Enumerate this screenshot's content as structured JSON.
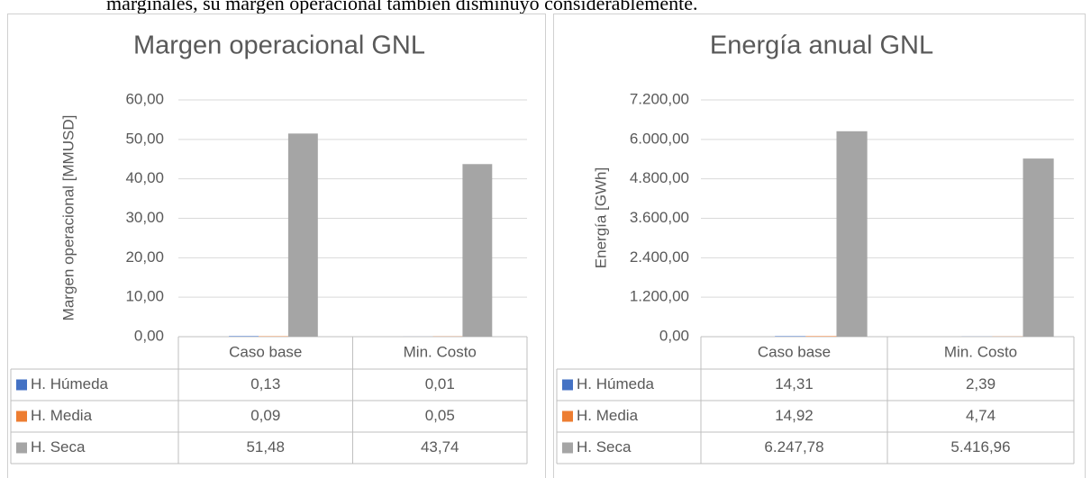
{
  "header_text": "marginales, su margen operacional también disminuyó considerablemente.",
  "chart_data": [
    {
      "type": "bar",
      "title": "Margen operacional GNL",
      "y_label": "Margen operacional [MMUSD]",
      "categories": [
        "Caso base",
        "Min. Costo"
      ],
      "series": [
        {
          "name": "H. Húmeda",
          "color": "#4472c4",
          "values": [
            0.13,
            0.01
          ],
          "value_labels": [
            "0,13",
            "0,01"
          ]
        },
        {
          "name": "H. Media",
          "color": "#ed7d31",
          "values": [
            0.09,
            0.05
          ],
          "value_labels": [
            "0,09",
            "0,05"
          ]
        },
        {
          "name": "H. Seca",
          "color": "#a5a5a5",
          "values": [
            51.48,
            43.74
          ],
          "value_labels": [
            "51,48",
            "43,74"
          ]
        }
      ],
      "ylim": [
        0,
        60
      ],
      "yticks": [
        {
          "value": 0,
          "label": "0,00"
        },
        {
          "value": 10,
          "label": "10,00"
        },
        {
          "value": 20,
          "label": "20,00"
        },
        {
          "value": 30,
          "label": "30,00"
        },
        {
          "value": 40,
          "label": "40,00"
        },
        {
          "value": 50,
          "label": "50,00"
        },
        {
          "value": 60,
          "label": "60,00"
        }
      ],
      "grid": true
    },
    {
      "type": "bar",
      "title": "Energía anual GNL",
      "y_label": "Energía [GWh]",
      "categories": [
        "Caso base",
        "Min. Costo"
      ],
      "series": [
        {
          "name": "H. Húmeda",
          "color": "#4472c4",
          "values": [
            14.31,
            2.39
          ],
          "value_labels": [
            "14,31",
            "2,39"
          ]
        },
        {
          "name": "H. Media",
          "color": "#ed7d31",
          "values": [
            14.92,
            4.74
          ],
          "value_labels": [
            "14,92",
            "4,74"
          ]
        },
        {
          "name": "H. Seca",
          "color": "#a5a5a5",
          "values": [
            6247.78,
            5416.96
          ],
          "value_labels": [
            "6.247,78",
            "5.416,96"
          ]
        }
      ],
      "ylim": [
        0,
        7200
      ],
      "yticks": [
        {
          "value": 0,
          "label": "0,00"
        },
        {
          "value": 1200,
          "label": "1.200,00"
        },
        {
          "value": 2400,
          "label": "2.400,00"
        },
        {
          "value": 3600,
          "label": "3.600,00"
        },
        {
          "value": 4800,
          "label": "4.800,00"
        },
        {
          "value": 6000,
          "label": "6.000,00"
        },
        {
          "value": 7200,
          "label": "7.200,00"
        }
      ],
      "grid": true
    }
  ]
}
